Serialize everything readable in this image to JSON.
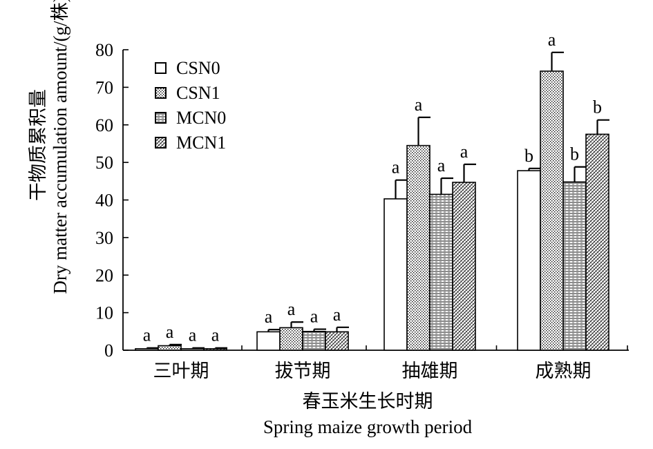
{
  "chart_data": {
    "type": "bar",
    "categories": [
      "三叶期",
      "拔节期",
      "抽雄期",
      "成熟期"
    ],
    "series": [
      {
        "name": "CSN0",
        "values": [
          0.4,
          4.9,
          40.3,
          47.8
        ],
        "errors": [
          0.2,
          0.6,
          5.0,
          0.6
        ],
        "labels": [
          "a",
          "a",
          "a",
          "b"
        ],
        "pattern": "white"
      },
      {
        "name": "CSN1",
        "values": [
          1.2,
          6.0,
          54.5,
          74.3
        ],
        "errors": [
          0.3,
          1.5,
          7.5,
          5.0
        ],
        "labels": [
          "a",
          "a",
          "a",
          "a"
        ],
        "pattern": "dots"
      },
      {
        "name": "MCN0",
        "values": [
          0.4,
          5.0,
          41.5,
          44.8
        ],
        "errors": [
          0.2,
          0.6,
          4.3,
          4.0
        ],
        "labels": [
          "a",
          "a",
          "a",
          "b"
        ],
        "pattern": "hlines"
      },
      {
        "name": "MCN1",
        "values": [
          0.4,
          4.9,
          44.7,
          57.5
        ],
        "errors": [
          0.2,
          1.2,
          4.8,
          3.8
        ],
        "labels": [
          "a",
          "a",
          "a",
          "b"
        ],
        "pattern": "crosshatch"
      }
    ],
    "ylabel_cn": "干物质累积量",
    "ylabel_en": "Dry matter accumulation amount/(g/株)",
    "xlabel_cn": "春玉米生长时期",
    "xlabel_en": "Spring maize growth period",
    "ylim": [
      0,
      80
    ],
    "yticks": [
      0,
      10,
      20,
      30,
      40,
      50,
      60,
      70,
      80
    ],
    "legend_position": "top-left",
    "grid": false,
    "colors": {
      "axis": "#000000",
      "bar_fill": "#ffffff"
    }
  }
}
